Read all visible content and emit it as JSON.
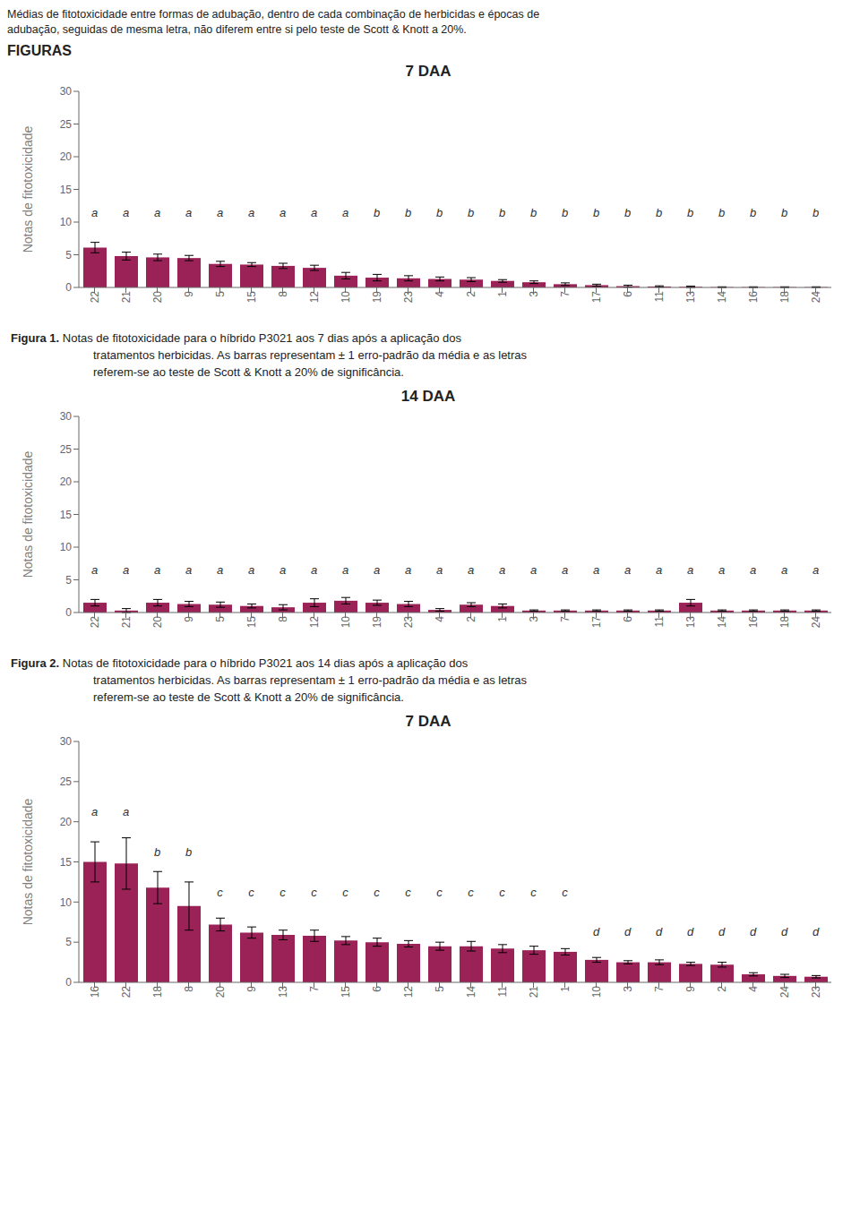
{
  "header": [
    "Médias de fitotoxicidade entre formas de adubação, dentro de cada combinação de herbicidas e épocas de",
    "adubação, seguidas de mesma letra, não diferem entre si pelo teste de Scott & Knott a 20%."
  ],
  "label": "FIGURAS",
  "chart_data": [
    {
      "type": "bar",
      "title": "7 DAA",
      "ylabel": "Notas de fitotoxicidade",
      "ylim": [
        0,
        30
      ],
      "yticks": [
        0,
        5,
        10,
        15,
        20,
        25,
        30
      ],
      "grid": false,
      "color": "#9B2257",
      "categories": [
        "22",
        "21",
        "20",
        "9",
        "5",
        "15",
        "8",
        "12",
        "10",
        "19",
        "23",
        "4",
        "2",
        "1",
        "3",
        "7",
        "17",
        "6",
        "11",
        "13",
        "14",
        "16",
        "18",
        "24"
      ],
      "values": [
        6.1,
        4.8,
        4.6,
        4.5,
        3.6,
        3.5,
        3.3,
        3.0,
        1.8,
        1.5,
        1.4,
        1.3,
        1.2,
        1.0,
        0.8,
        0.5,
        0.35,
        0.2,
        0.15,
        0.1,
        0.05,
        0.05,
        0.05,
        0.05
      ],
      "errors": [
        0.8,
        0.6,
        0.5,
        0.4,
        0.4,
        0.3,
        0.4,
        0.4,
        0.5,
        0.5,
        0.4,
        0.3,
        0.3,
        0.2,
        0.2,
        0.2,
        0.15,
        0.15,
        0.1,
        0.1,
        0.05,
        0.05,
        0.05,
        0.05
      ],
      "letters": [
        "a",
        "a",
        "a",
        "a",
        "a",
        "a",
        "a",
        "a",
        "a",
        "b",
        "b",
        "b",
        "b",
        "b",
        "b",
        "b",
        "b",
        "b",
        "b",
        "b",
        "b",
        "b",
        "b",
        "b"
      ],
      "letter_y": [
        10.2,
        10.2,
        10.2,
        10.2,
        10.2,
        10.2,
        10.2,
        10.2,
        10.2,
        10.2,
        10.2,
        10.2,
        10.2,
        10.2,
        10.2,
        10.2,
        10.2,
        10.2,
        10.2,
        10.2,
        10.2,
        10.2,
        10.2,
        10.2
      ],
      "caption_bold": "Figura 1.",
      "caption": [
        " Notas de fitotoxicidade para o híbrido P3021 aos 7 dias após a aplicação dos",
        "tratamentos herbicidas. As barras representam ± 1 erro-padrão da média e as letras",
        "referem-se ao teste de Scott & Knott a 20% de significância."
      ]
    },
    {
      "type": "bar",
      "title": "14 DAA",
      "ylabel": "Notas de fitotoxicidade",
      "ylim": [
        0,
        30
      ],
      "yticks": [
        0,
        5,
        10,
        15,
        20,
        25,
        30
      ],
      "grid": false,
      "color": "#9B2257",
      "categories": [
        "22",
        "21",
        "20",
        "9",
        "5",
        "15",
        "8",
        "12",
        "10",
        "19",
        "23",
        "4",
        "2",
        "1",
        "3",
        "7",
        "17",
        "6",
        "11",
        "13",
        "14",
        "16",
        "18",
        "24"
      ],
      "values": [
        1.5,
        0.3,
        1.5,
        1.3,
        1.2,
        1.0,
        0.8,
        1.5,
        1.8,
        1.5,
        1.3,
        0.4,
        1.2,
        1.0,
        0.3,
        0.3,
        0.3,
        0.3,
        0.3,
        1.5,
        0.3,
        0.3,
        0.3,
        0.3
      ],
      "errors": [
        0.5,
        0.3,
        0.5,
        0.4,
        0.4,
        0.3,
        0.4,
        0.6,
        0.5,
        0.4,
        0.4,
        0.2,
        0.3,
        0.3,
        0.1,
        0.1,
        0.1,
        0.1,
        0.1,
        0.5,
        0.1,
        0.1,
        0.1,
        0.1
      ],
      "letters": [
        "a",
        "a",
        "a",
        "a",
        "a",
        "a",
        "a",
        "a",
        "a",
        "a",
        "a",
        "a",
        "a",
        "a",
        "a",
        "a",
        "a",
        "a",
        "a",
        "a",
        "a",
        "a",
        "a",
        "a"
      ],
      "letter_y": [
        5.2,
        5.2,
        5.2,
        5.2,
        5.2,
        5.2,
        5.2,
        5.2,
        5.2,
        5.2,
        5.2,
        5.2,
        5.2,
        5.2,
        5.2,
        5.2,
        5.2,
        5.2,
        5.2,
        5.2,
        5.2,
        5.2,
        5.2,
        5.2
      ],
      "caption_bold": "Figura 2.",
      "caption": [
        " Notas de fitotoxicidade para o híbrido P3021 aos 14 dias após a aplicação dos",
        "tratamentos herbicidas. As barras representam ± 1 erro-padrão da média e as letras",
        "referem-se ao teste de Scott & Knott a 20% de significância."
      ]
    },
    {
      "type": "bar",
      "title": "7 DAA",
      "ylabel": "Notas de fitotoxicidade",
      "ylim": [
        0,
        30
      ],
      "yticks": [
        0,
        5,
        10,
        15,
        20,
        25,
        30
      ],
      "grid": false,
      "color": "#9B2257",
      "categories": [
        "16",
        "22",
        "18",
        "8",
        "20",
        "9",
        "13",
        "7",
        "15",
        "6",
        "12",
        "5",
        "14",
        "11",
        "21",
        "1",
        "10",
        "3",
        "7",
        "9",
        "2",
        "4",
        "24",
        "23"
      ],
      "values": [
        15.0,
        14.8,
        11.8,
        9.5,
        7.2,
        6.2,
        5.9,
        5.8,
        5.2,
        5.0,
        4.8,
        4.5,
        4.5,
        4.2,
        4.0,
        3.8,
        2.8,
        2.5,
        2.5,
        2.3,
        2.2,
        1.0,
        0.8,
        0.7
      ],
      "errors": [
        2.5,
        3.2,
        2.0,
        3.0,
        0.8,
        0.7,
        0.6,
        0.7,
        0.5,
        0.5,
        0.4,
        0.5,
        0.6,
        0.5,
        0.5,
        0.4,
        0.3,
        0.2,
        0.3,
        0.2,
        0.3,
        0.2,
        0.2,
        0.15
      ],
      "letters": [
        "a",
        "a",
        "b",
        "b",
        "c",
        "c",
        "c",
        "c",
        "c",
        "c",
        "c",
        "c",
        "c",
        "c",
        "c",
        "c",
        "d",
        "d",
        "d",
        "d",
        "d",
        "d",
        "d",
        "d"
      ],
      "letter_y": [
        20.2,
        20.2,
        15.2,
        15.2,
        10.2,
        10.2,
        10.2,
        10.2,
        10.2,
        10.2,
        10.2,
        10.2,
        10.2,
        10.2,
        10.2,
        10.2,
        5.2,
        5.2,
        5.2,
        5.2,
        5.2,
        5.2,
        5.2,
        5.2
      ]
    }
  ]
}
